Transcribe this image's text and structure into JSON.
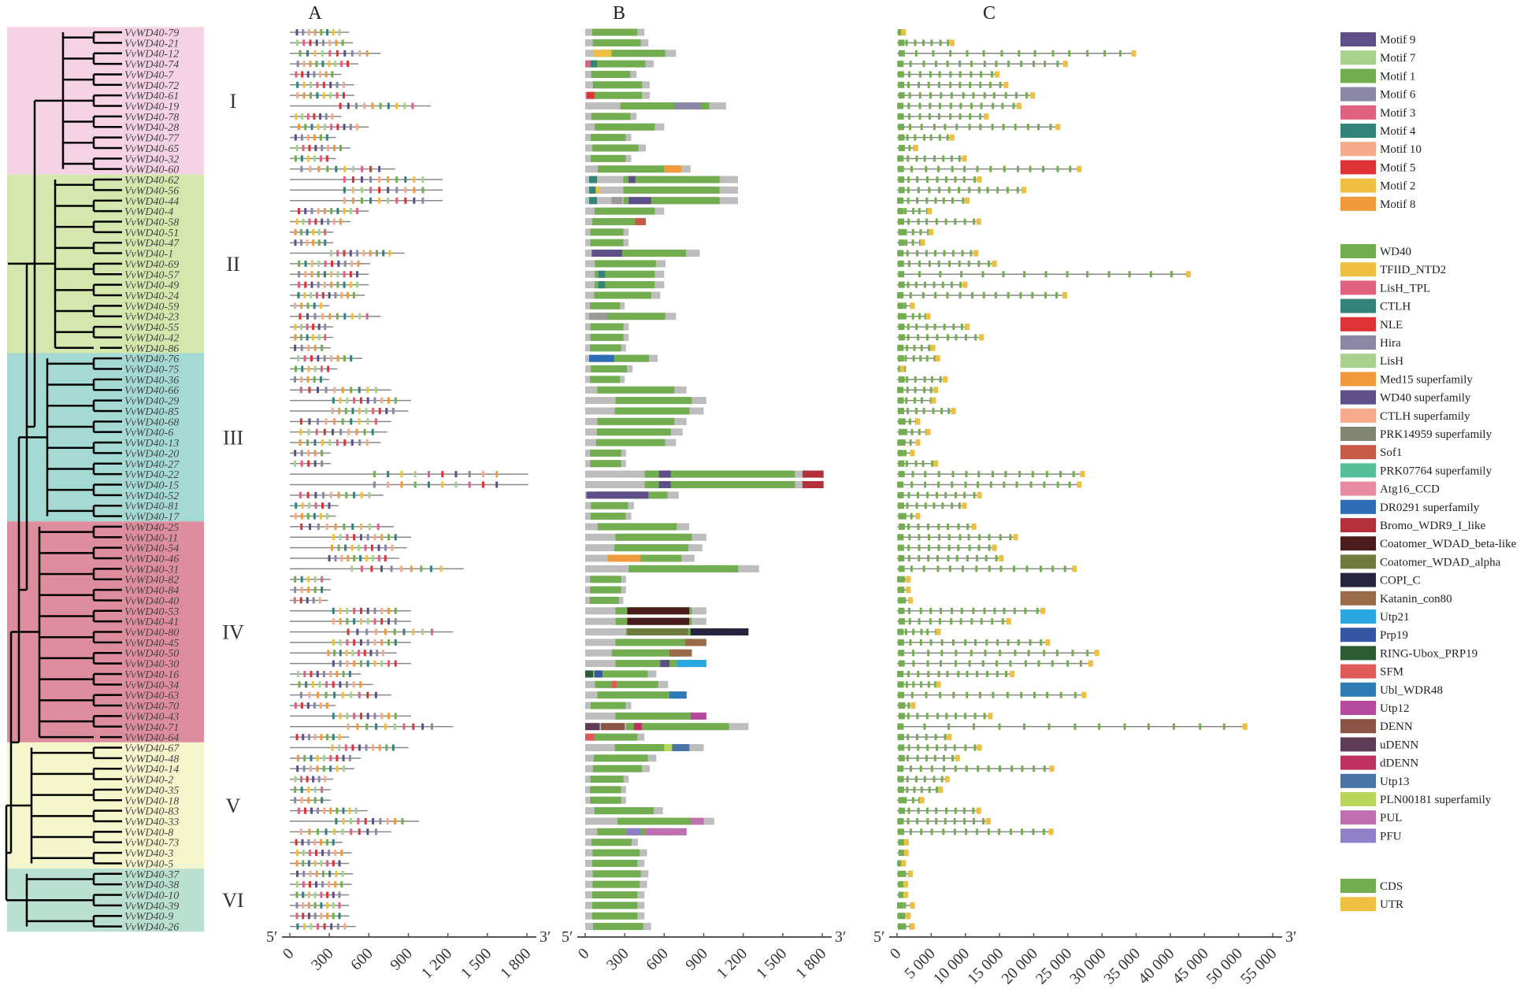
{
  "panels": {
    "A": "A",
    "B": "B",
    "C": "C"
  },
  "axis": {
    "five_prime": "5′",
    "three_prime": "3′",
    "A_ticks": [
      "0",
      "300",
      "600",
      "900",
      "1 200",
      "1 500",
      "1 800"
    ],
    "A_max": 1800,
    "B_ticks": [
      "0",
      "300",
      "600",
      "900",
      "1 200",
      "1 500",
      "1 800"
    ],
    "B_max": 1800,
    "C_ticks": [
      "0",
      "5 000",
      "10 000",
      "15 000",
      "20 000",
      "25 000",
      "30 000",
      "35 000",
      "40 000",
      "45 000",
      "50 000",
      "55 000"
    ],
    "C_max": 55000
  },
  "clades": [
    {
      "label": "I",
      "count": 14,
      "color": "#f5d2e4"
    },
    {
      "label": "II",
      "count": 17,
      "color": "#d6e7ae"
    },
    {
      "label": "III",
      "count": 16,
      "color": "#a5dad4"
    },
    {
      "label": "IV",
      "count": 21,
      "color": "#dd8d9e"
    },
    {
      "label": "V",
      "count": 12,
      "color": "#f6f6cd"
    },
    {
      "label": "VI",
      "count": 6,
      "color": "#bae0d1"
    }
  ],
  "genes": [
    [
      "VvWD40-79",
      450,
      1300
    ],
    [
      "VvWD40-21",
      480,
      8400
    ],
    [
      "VvWD40-12",
      690,
      35000
    ],
    [
      "VvWD40-74",
      520,
      25000
    ],
    [
      "VvWD40-7",
      390,
      15000
    ],
    [
      "VvWD40-72",
      490,
      16300
    ],
    [
      "VvWD40-61",
      490,
      20200
    ],
    [
      "VvWD40-19",
      1070,
      18200
    ],
    [
      "VvWD40-78",
      390,
      13400
    ],
    [
      "VvWD40-28",
      600,
      23900
    ],
    [
      "VvWD40-77",
      350,
      8400
    ],
    [
      "VvWD40-65",
      460,
      3100
    ],
    [
      "VvWD40-32",
      350,
      10200
    ],
    [
      "VvWD40-60",
      800,
      27000
    ],
    [
      "VvWD40-62",
      1160,
      12400
    ],
    [
      "VvWD40-56",
      1160,
      18900
    ],
    [
      "VvWD40-44",
      1160,
      10600
    ],
    [
      "VvWD40-4",
      600,
      5100
    ],
    [
      "VvWD40-58",
      460,
      12300
    ],
    [
      "VvWD40-51",
      330,
      5300
    ],
    [
      "VvWD40-47",
      330,
      4100
    ],
    [
      "VvWD40-1",
      870,
      11900
    ],
    [
      "VvWD40-69",
      610,
      14600
    ],
    [
      "VvWD40-57",
      600,
      43000
    ],
    [
      "VvWD40-49",
      600,
      10300
    ],
    [
      "VvWD40-24",
      570,
      24900
    ],
    [
      "VvWD40-59",
      300,
      2600
    ],
    [
      "VvWD40-23",
      690,
      4900
    ],
    [
      "VvWD40-55",
      330,
      10600
    ],
    [
      "VvWD40-42",
      330,
      12700
    ],
    [
      "VvWD40-86",
      310,
      5600
    ],
    [
      "VvWD40-76",
      550,
      6300
    ],
    [
      "VvWD40-75",
      360,
      1100
    ],
    [
      "VvWD40-36",
      300,
      7400
    ],
    [
      "VvWD40-66",
      770,
      6000
    ],
    [
      "VvWD40-29",
      920,
      5700
    ],
    [
      "VvWD40-85",
      900,
      8600
    ],
    [
      "VvWD40-68",
      770,
      3400
    ],
    [
      "VvWD40-6",
      740,
      4900
    ],
    [
      "VvWD40-13",
      690,
      3400
    ],
    [
      "VvWD40-20",
      310,
      2600
    ],
    [
      "VvWD40-27",
      310,
      6000
    ],
    [
      "VvWD40-22",
      1810,
      27500
    ],
    [
      "VvWD40-15",
      1810,
      27000
    ],
    [
      "VvWD40-52",
      710,
      12400
    ],
    [
      "VvWD40-81",
      370,
      10200
    ],
    [
      "VvWD40-17",
      350,
      3400
    ],
    [
      "VvWD40-25",
      790,
      11600
    ],
    [
      "VvWD40-11",
      920,
      17700
    ],
    [
      "VvWD40-54",
      890,
      14600
    ],
    [
      "VvWD40-46",
      830,
      15600
    ],
    [
      "VvWD40-31",
      1320,
      26300
    ],
    [
      "VvWD40-82",
      310,
      2000
    ],
    [
      "VvWD40-84",
      310,
      2000
    ],
    [
      "VvWD40-40",
      290,
      2300
    ],
    [
      "VvWD40-53",
      920,
      21700
    ],
    [
      "VvWD40-41",
      920,
      16700
    ],
    [
      "VvWD40-80",
      1240,
      6400
    ],
    [
      "VvWD40-45",
      920,
      22400
    ],
    [
      "VvWD40-50",
      810,
      29600
    ],
    [
      "VvWD40-30",
      920,
      28700
    ],
    [
      "VvWD40-16",
      540,
      17200
    ],
    [
      "VvWD40-34",
      630,
      6400
    ],
    [
      "VvWD40-63",
      770,
      27700
    ],
    [
      "VvWD40-70",
      350,
      2700
    ],
    [
      "VvWD40-43",
      920,
      14000
    ],
    [
      "VvWD40-71",
      1240,
      51300
    ],
    [
      "VvWD40-64",
      450,
      8000
    ],
    [
      "VvWD40-67",
      900,
      12400
    ],
    [
      "VvWD40-48",
      540,
      9200
    ],
    [
      "VvWD40-14",
      490,
      23000
    ],
    [
      "VvWD40-2",
      330,
      7700
    ],
    [
      "VvWD40-35",
      310,
      6700
    ],
    [
      "VvWD40-18",
      310,
      4000
    ],
    [
      "VvWD40-83",
      590,
      12300
    ],
    [
      "VvWD40-33",
      980,
      13700
    ],
    [
      "VvWD40-8",
      770,
      22900
    ],
    [
      "VvWD40-73",
      400,
      1700
    ],
    [
      "VvWD40-3",
      470,
      1700
    ],
    [
      "VvWD40-5",
      450,
      1300
    ],
    [
      "VvWD40-37",
      480,
      2300
    ],
    [
      "VvWD40-38",
      470,
      1600
    ],
    [
      "VvWD40-10",
      450,
      1600
    ],
    [
      "VvWD40-39",
      450,
      2600
    ],
    [
      "VvWD40-9",
      450,
      2000
    ],
    [
      "VvWD40-26",
      500,
      2600
    ]
  ],
  "extra_domains": {
    "VvWD40-12": [
      [
        "TFIID_NTD2",
        60,
        200
      ]
    ],
    "VvWD40-74": [
      [
        "LisH_TPL",
        0,
        40
      ],
      [
        "CTLH",
        40,
        90
      ]
    ],
    "VvWD40-61": [
      [
        "NLE",
        10,
        70
      ]
    ],
    "VvWD40-19": [
      [
        "Hira",
        680,
        880
      ]
    ],
    "VvWD40-60": [
      [
        "Med15 superfamily",
        600,
        730
      ]
    ],
    "VvWD40-62": [
      [
        "CTLH",
        30,
        90
      ],
      [
        "WD40 superfamily",
        330,
        380
      ]
    ],
    "VvWD40-56": [
      [
        "CTLH",
        30,
        80
      ],
      [
        "TFIID_NTD2",
        80,
        110
      ]
    ],
    "VvWD40-44": [
      [
        "CTLH",
        30,
        90
      ],
      [
        "PRK14959",
        200,
        280
      ],
      [
        "WD40 superfamily",
        330,
        500
      ]
    ],
    "VvWD40-58": [
      [
        "Sof1",
        380,
        460
      ]
    ],
    "VvWD40-1": [
      [
        "WD40 superfamily",
        50,
        280
      ]
    ],
    "VvWD40-57": [
      [
        "CTLH",
        100,
        150
      ]
    ],
    "VvWD40-49": [
      [
        "CTLH",
        100,
        150
      ]
    ],
    "VvWD40-23": [
      [
        "PRK07764",
        30,
        170
      ]
    ],
    "VvWD40-76": [
      [
        "DR0291 superfamily",
        30,
        220
      ]
    ],
    "VvWD40-22": [
      [
        "WD40 superfamily",
        560,
        650
      ],
      [
        "Bromo_WDR9_I_like",
        1650,
        1810
      ]
    ],
    "VvWD40-15": [
      [
        "WD40 superfamily",
        560,
        650
      ],
      [
        "Bromo_WDR9_I_like",
        1650,
        1810
      ]
    ],
    "VvWD40-52": [
      [
        "WD40 superfamily",
        10,
        480
      ]
    ],
    "VvWD40-46": [
      [
        "Med15 superfamily",
        170,
        420
      ]
    ],
    "VvWD40-53": [
      [
        "Coatomer_WDAD_beta-like",
        320,
        790
      ]
    ],
    "VvWD40-41": [
      [
        "Coatomer_WDAD_beta-like",
        320,
        790
      ]
    ],
    "VvWD40-80": [
      [
        "Coatomer_WDAD_alpha",
        320,
        780
      ],
      [
        "COPI_C",
        800,
        1240
      ]
    ],
    "VvWD40-45": [
      [
        "Katanin_con80",
        760,
        920
      ]
    ],
    "VvWD40-50": [
      [
        "Katanin_con80",
        640,
        810
      ]
    ],
    "VvWD40-30": [
      [
        "WD40 superfamily",
        570,
        640
      ],
      [
        "Utp21",
        700,
        920
      ]
    ],
    "VvWD40-16": [
      [
        "RING-Ubox_PRP19",
        0,
        60
      ],
      [
        "Prp19",
        70,
        130
      ]
    ],
    "VvWD40-34": [
      [
        "SFM",
        200,
        240
      ]
    ],
    "VvWD40-63": [
      [
        "Ubl_WDR48",
        640,
        770
      ]
    ],
    "VvWD40-43": [
      [
        "Utp12",
        800,
        920
      ]
    ],
    "VvWD40-71": [
      [
        "uDENN",
        0,
        110
      ],
      [
        "DENN",
        120,
        300
      ],
      [
        "dDENN",
        370,
        430
      ]
    ],
    "VvWD40-64": [
      [
        "SFM",
        0,
        70
      ]
    ],
    "VvWD40-67": [
      [
        "PLN00181 superfamily",
        600,
        660
      ],
      [
        "Utp13",
        660,
        790
      ]
    ],
    "VvWD40-33": [
      [
        "PUL",
        800,
        900
      ]
    ],
    "VvWD40-8": [
      [
        "PFU",
        310,
        420
      ],
      [
        "PUL",
        460,
        770
      ]
    ]
  },
  "legend": {
    "motifs": [
      {
        "label": "Motif 9",
        "color": "#5e4f88"
      },
      {
        "label": "Motif 7",
        "color": "#a7d18c"
      },
      {
        "label": "Motif 1",
        "color": "#72ad4f"
      },
      {
        "label": "Motif 6",
        "color": "#8b88a6"
      },
      {
        "label": "Motif 3",
        "color": "#e06180"
      },
      {
        "label": "Motif 4",
        "color": "#33837a"
      },
      {
        "label": "Motif 10",
        "color": "#f5ab89"
      },
      {
        "label": "Motif 5",
        "color": "#df3236"
      },
      {
        "label": "Motif 2",
        "color": "#efbf42"
      },
      {
        "label": "Motif 8",
        "color": "#f19a3c"
      }
    ],
    "domains": [
      {
        "label": "WD40",
        "color": "#72ad4f"
      },
      {
        "label": "TFIID_NTD2",
        "color": "#efbf42"
      },
      {
        "label": "LisH_TPL",
        "color": "#e06180"
      },
      {
        "label": "CTLH",
        "color": "#33837a"
      },
      {
        "label": "NLE",
        "color": "#df3236"
      },
      {
        "label": "Hira",
        "color": "#8b88a6"
      },
      {
        "label": "LisH",
        "color": "#a7d18c"
      },
      {
        "label": "Med15 superfamily",
        "color": "#f19a3c"
      },
      {
        "label": "WD40 superfamily",
        "color": "#5e4f88"
      },
      {
        "label": "CTLH superfamily",
        "color": "#f5ab89"
      },
      {
        "label": "PRK14959 superfamily",
        "color": "#7f8570"
      },
      {
        "label": "Sof1",
        "color": "#c65a45"
      },
      {
        "label": "PRK07764 superfamily",
        "color": "#55bf98"
      },
      {
        "label": "Atg16_CCD",
        "color": "#e88aa0"
      },
      {
        "label": "DR0291 superfamily",
        "color": "#2e6db5"
      },
      {
        "label": "Bromo_WDR9_I_like",
        "color": "#b3303c"
      },
      {
        "label": "Coatomer_WDAD_beta-like",
        "color": "#4a1c1c"
      },
      {
        "label": "Coatomer_WDAD_alpha",
        "color": "#6f7a3d"
      },
      {
        "label": "COPI_C",
        "color": "#24243f"
      },
      {
        "label": "Katanin_con80",
        "color": "#9a6b48"
      },
      {
        "label": "Utp21",
        "color": "#29a8e0"
      },
      {
        "label": "Prp19",
        "color": "#3456a4"
      },
      {
        "label": "RING-Ubox_PRP19",
        "color": "#2d5c33"
      },
      {
        "label": "SFM",
        "color": "#e05a5a"
      },
      {
        "label": "Ubl_WDR48",
        "color": "#2f7bb5"
      },
      {
        "label": "Utp12",
        "color": "#b64a9e"
      },
      {
        "label": "DENN",
        "color": "#8a5545"
      },
      {
        "label": "uDENN",
        "color": "#5e3c55"
      },
      {
        "label": "dDENN",
        "color": "#c0305e"
      },
      {
        "label": "Utp13",
        "color": "#4a74a4"
      },
      {
        "label": "PLN00181 superfamily",
        "color": "#b9d65a"
      },
      {
        "label": "PUL",
        "color": "#c070b0"
      },
      {
        "label": "PFU",
        "color": "#9080c8"
      }
    ],
    "structure": [
      {
        "label": "CDS",
        "color": "#72ad4f"
      },
      {
        "label": "UTR",
        "color": "#efbf42"
      }
    ]
  }
}
